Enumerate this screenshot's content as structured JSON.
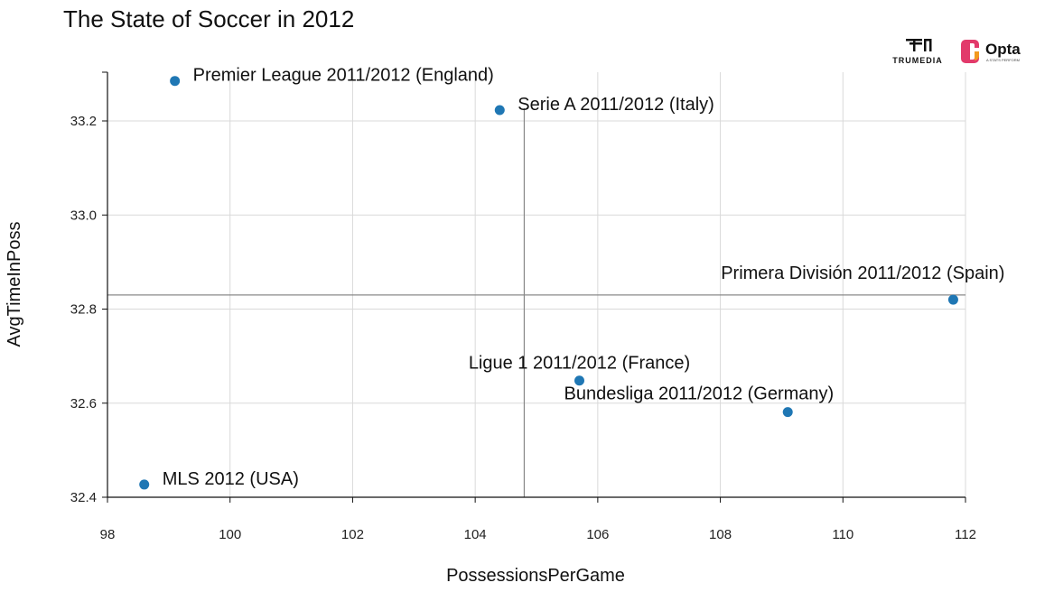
{
  "chart_data": {
    "type": "scatter",
    "title": "The State of Soccer in 2012",
    "xlabel": "PossessionsPerGame",
    "ylabel": "AvgTimeInPoss",
    "xlim": [
      98,
      112
    ],
    "ylim": [
      32.4,
      33.3
    ],
    "xticks": [
      98,
      100,
      102,
      104,
      106,
      108,
      110,
      112
    ],
    "xtick_labels": [
      "98",
      "100",
      "102",
      "104",
      "106",
      "108",
      "110",
      "112"
    ],
    "yticks": [
      32.4,
      32.6,
      32.8,
      33.0,
      33.2
    ],
    "ytick_labels": [
      "32.4",
      "32.6",
      "32.8",
      "33.0",
      "33.2"
    ],
    "grid": true,
    "reference_lines": {
      "x": 104.8,
      "y": 32.83
    },
    "point_color": "#1f77b4",
    "points": [
      {
        "label": "Premier League 2011/2012 (England)",
        "x": 99.1,
        "y": 33.285,
        "label_pos": "right"
      },
      {
        "label": "Serie A 2011/2012 (Italy)",
        "x": 104.4,
        "y": 33.223,
        "label_pos": "right"
      },
      {
        "label": "Primera División 2011/2012 (Spain)",
        "x": 111.8,
        "y": 32.82,
        "label_pos": "above-left"
      },
      {
        "label": "Ligue 1 2011/2012 (France)",
        "x": 105.7,
        "y": 32.648,
        "label_pos": "above"
      },
      {
        "label": "Bundesliga 2011/2012 (Germany)",
        "x": 109.1,
        "y": 32.581,
        "label_pos": "above"
      },
      {
        "label": "MLS 2012 (USA)",
        "x": 98.6,
        "y": 32.427,
        "label_pos": "right"
      }
    ]
  },
  "logos": {
    "trumedia": "TRUMEDIA",
    "opta": "Opta",
    "opta_sub": "A STATS PERFORM"
  }
}
